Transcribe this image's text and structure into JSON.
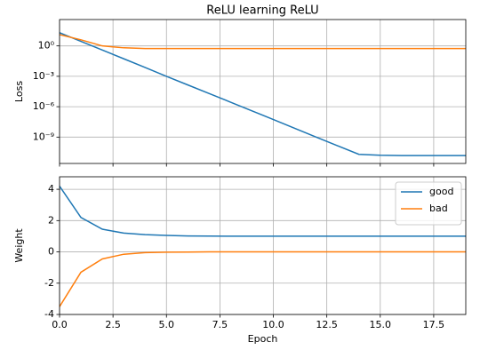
{
  "chart_data": [
    {
      "type": "line",
      "title": "ReLU learning ReLU",
      "y_label": "Loss",
      "log_scale_y": true,
      "grid": true,
      "x": [
        0,
        1,
        2,
        3,
        4,
        5,
        6,
        7,
        8,
        9,
        10,
        11,
        12,
        13,
        14,
        15,
        16,
        17,
        18,
        19
      ],
      "xlim": [
        0,
        19
      ],
      "xticks": [
        0,
        2.5,
        5,
        7.5,
        10,
        12.5,
        15,
        17.5
      ],
      "ylim": [
        2.5e-12,
        400
      ],
      "yticks": [
        {
          "value": 1,
          "label": "10⁰"
        },
        {
          "value": 0.001,
          "label": "10⁻³"
        },
        {
          "value": 1e-06,
          "label": "10⁻⁶"
        },
        {
          "value": 1e-09,
          "label": "10⁻⁹"
        }
      ],
      "series": [
        {
          "color": "#1f77b4",
          "values": [
            20,
            2.8,
            0.39,
            0.054,
            0.0074,
            0.001,
            0.00014,
            2e-05,
            2.8e-06,
            3.9e-07,
            5.4e-08,
            7.4e-09,
            1e-09,
            1.4e-10,
            2e-11,
            1.6e-11,
            1.5e-11,
            1.5e-11,
            1.5e-11,
            1.5e-11
          ]
        },
        {
          "color": "#ff7f0e",
          "values": [
            13,
            4,
            1,
            0.65,
            0.55,
            0.55,
            0.55,
            0.55,
            0.55,
            0.55,
            0.55,
            0.55,
            0.55,
            0.55,
            0.55,
            0.55,
            0.55,
            0.55,
            0.55,
            0.55
          ]
        }
      ]
    },
    {
      "type": "line",
      "x_label": "Epoch",
      "y_label": "Weight",
      "grid": true,
      "legend": "upper right",
      "x": [
        0,
        1,
        2,
        3,
        4,
        5,
        6,
        7,
        8,
        9,
        10,
        11,
        12,
        13,
        14,
        15,
        16,
        17,
        18,
        19
      ],
      "xlim": [
        0,
        19
      ],
      "xticks": [
        {
          "value": 0,
          "label": "0.0"
        },
        2.5,
        {
          "value": 5,
          "label": "5.0"
        },
        7.5,
        {
          "value": 10,
          "label": "10.0"
        },
        12.5,
        {
          "value": 15,
          "label": "15.0"
        },
        17.5
      ],
      "ylim": [
        -4,
        4.8
      ],
      "yticks": [
        -4,
        -2,
        0,
        2,
        4
      ],
      "series": [
        {
          "name": "good",
          "color": "#1f77b4",
          "values": [
            4.2,
            2.2,
            1.45,
            1.2,
            1.1,
            1.05,
            1.02,
            1.01,
            1,
            1,
            1,
            1,
            1,
            1,
            1,
            1,
            1,
            1,
            1,
            1
          ]
        },
        {
          "name": "bad",
          "color": "#ff7f0e",
          "values": [
            -3.5,
            -1.3,
            -0.45,
            -0.15,
            -0.05,
            -0.02,
            -0.01,
            0,
            0,
            0,
            0,
            0,
            0,
            0,
            0,
            0,
            0,
            0,
            0,
            0
          ]
        }
      ]
    }
  ]
}
